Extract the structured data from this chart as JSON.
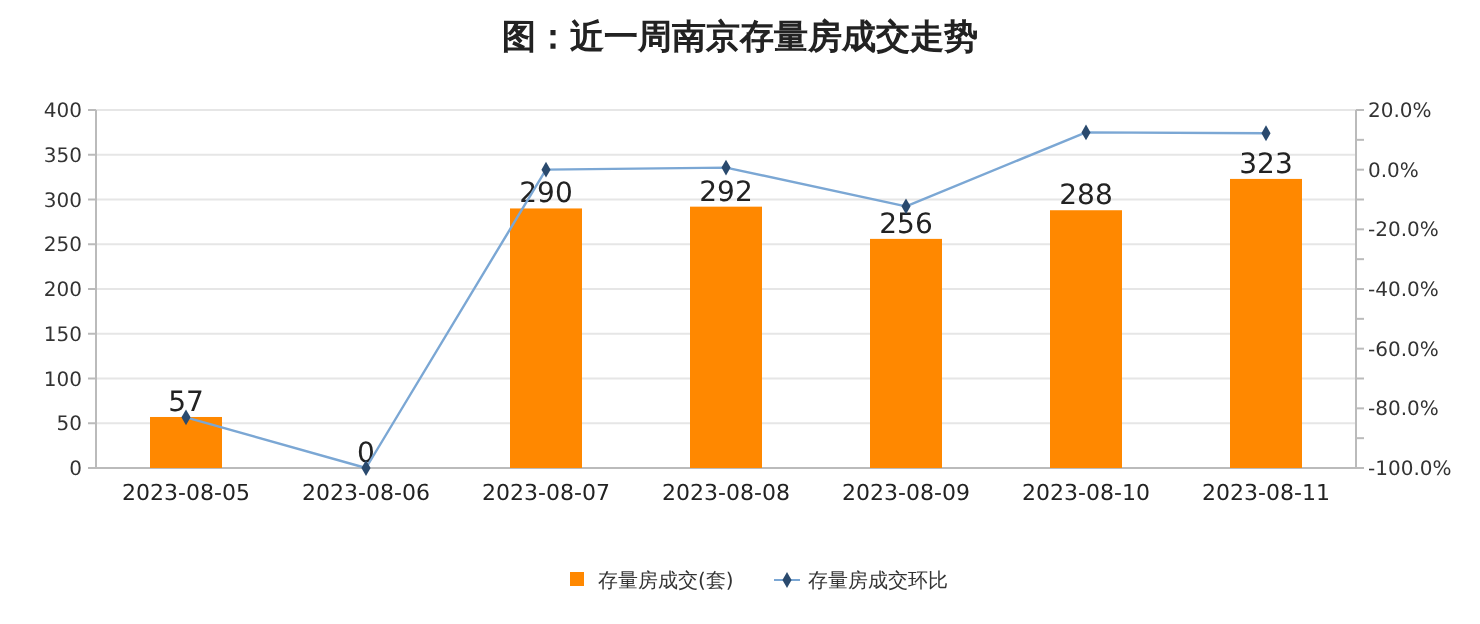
{
  "chart_data": {
    "type": "bar",
    "title": "图：近一周南京存量房成交走势",
    "categories": [
      "2023-08-05",
      "2023-08-06",
      "2023-08-07",
      "2023-08-08",
      "2023-08-09",
      "2023-08-10",
      "2023-08-11"
    ],
    "series": [
      {
        "name": "存量房成交(套)",
        "color": "#ff8800",
        "values": [
          57,
          0,
          290,
          292,
          256,
          288,
          323
        ],
        "value_labels": [
          "57",
          "0",
          "290",
          "292",
          "256",
          "288",
          "323"
        ]
      },
      {
        "name": "存量房成交环比",
        "type": "line",
        "axis": "y2",
        "color": "#7ba7d4",
        "marker": "diamond",
        "values": [
          -83,
          -100,
          0,
          0.7,
          -12.3,
          12.5,
          12.2
        ]
      }
    ],
    "ylim": [
      0,
      400
    ],
    "yticks": [
      0,
      50,
      100,
      150,
      200,
      250,
      300,
      350,
      400
    ],
    "y2lim": [
      -100,
      20
    ],
    "y2ticks": [
      {
        "value": -100,
        "label": "-100.0%"
      },
      {
        "value": -90,
        "label": null
      },
      {
        "value": -80,
        "label": "-80.0%"
      },
      {
        "value": -70,
        "label": null
      },
      {
        "value": -60,
        "label": "-60.0%"
      },
      {
        "value": -50,
        "label": null
      },
      {
        "value": -40,
        "label": "-40.0%"
      },
      {
        "value": -30,
        "label": null
      },
      {
        "value": -20,
        "label": "-20.0%"
      },
      {
        "value": -10,
        "label": null
      },
      {
        "value": 0,
        "label": "0.0%"
      },
      {
        "value": 10,
        "label": null
      },
      {
        "value": 20,
        "label": "20.0%"
      }
    ],
    "grid": "y",
    "legend": "bottom"
  }
}
